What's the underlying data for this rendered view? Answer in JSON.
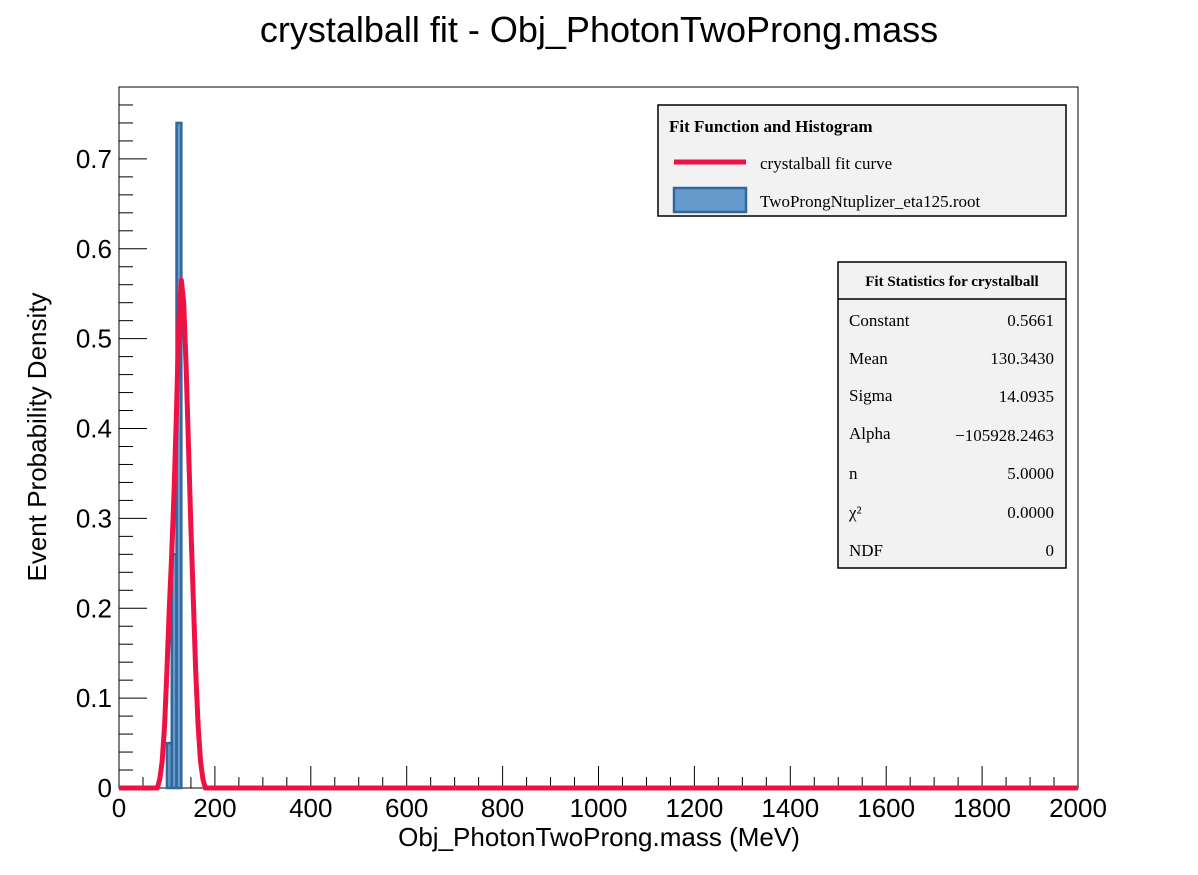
{
  "chart_data": {
    "type": "bar",
    "title": "crystalball fit - Obj_PhotonTwoProng.mass",
    "xlabel": "Obj_PhotonTwoProng.mass (MeV)",
    "ylabel": "Event Probability Density",
    "xlim": [
      0,
      2000
    ],
    "ylim": [
      0,
      0.78
    ],
    "x_ticks": [
      0,
      200,
      400,
      600,
      800,
      1000,
      1200,
      1400,
      1600,
      1800,
      2000
    ],
    "x_tick_labels": [
      "0",
      "200",
      "400",
      "600",
      "800",
      "1000",
      "1200",
      "1400",
      "1600",
      "1800",
      "2000"
    ],
    "y_ticks": [
      0,
      0.1,
      0.2,
      0.3,
      0.4,
      0.5,
      0.6,
      0.7
    ],
    "y_tick_labels": [
      "0",
      "0.1",
      "0.2",
      "0.3",
      "0.4",
      "0.5",
      "0.6",
      "0.7"
    ],
    "histogram": {
      "name": "TwoProngNtuplizer_eta125.root",
      "bin_width": 10,
      "bin_edges": [
        100,
        110,
        120,
        130,
        140
      ],
      "values": [
        0.05,
        0.26,
        0.74,
        0.0
      ]
    },
    "fit_curve": {
      "name": "crystalball fit curve",
      "x": [
        0,
        80,
        85,
        90,
        95,
        100,
        105,
        110,
        115,
        120,
        125,
        130,
        135,
        140,
        145,
        150,
        155,
        160,
        165,
        170,
        175,
        180,
        185,
        190,
        195,
        200,
        400,
        800,
        1200,
        1600,
        2000
      ],
      "y": [
        0,
        0,
        0.01,
        0.03,
        0.07,
        0.13,
        0.2,
        0.26,
        0.33,
        0.42,
        0.52,
        0.565,
        0.54,
        0.47,
        0.38,
        0.29,
        0.21,
        0.13,
        0.07,
        0.03,
        0.01,
        0.0,
        0,
        0,
        0,
        0,
        0,
        0,
        0,
        0,
        0
      ]
    },
    "legend": {
      "title": "Fit Function and Histogram",
      "placement": "top-right",
      "entries": [
        "crystalball fit curve",
        "TwoProngNtuplizer_eta125.root"
      ]
    },
    "stats": {
      "title": "Fit Statistics for crystalball",
      "rows": [
        {
          "label": "Constant",
          "value": "0.5661"
        },
        {
          "label": "Mean",
          "value": "130.3430"
        },
        {
          "label": "Sigma",
          "value": "14.0935"
        },
        {
          "label": "Alpha",
          "value": "−105928.2463"
        },
        {
          "label": "n",
          "value": "5.0000"
        },
        {
          "label": "χ²",
          "value": "0.0000"
        },
        {
          "label": "NDF",
          "value": "0"
        }
      ]
    },
    "colors": {
      "histogram_fill": "#6699cc",
      "histogram_line": "#336699",
      "curve": "#ee1144",
      "legend_bg": "#f2f2f2"
    }
  }
}
